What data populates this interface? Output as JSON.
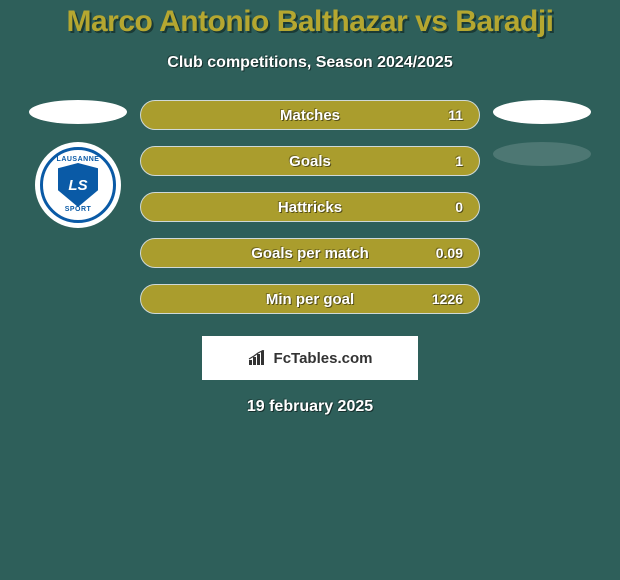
{
  "background_color": "#2e5f5a",
  "title": {
    "text": "Marco Antonio Balthazar vs Baradji",
    "color": "#b5a730",
    "shadow_color": "#1a3a36",
    "fontsize": 30
  },
  "subtitle": {
    "text": "Club competitions, Season 2024/2025",
    "color": "#ffffff",
    "fontsize": 16
  },
  "left_side": {
    "ellipse_color": "#ffffff",
    "club": {
      "bg": "#ffffff",
      "ring_color": "#0a5aa6",
      "top_text": "LAUSANNE",
      "bottom_text": "SPORT",
      "text_color": "#0a5aa6",
      "shield_bg": "#0a5aa6",
      "shield_text": "LS",
      "shield_text_color": "#ffffff"
    }
  },
  "right_side": {
    "ellipse1_color": "#ffffff",
    "ellipse2_color": "#4d7773"
  },
  "bars": {
    "fill_color": "#aa9d2d",
    "border_color": "#cfd9d7",
    "label_color": "#ffffff",
    "value_color": "#ffffff",
    "items": [
      {
        "label": "Matches",
        "value": "11"
      },
      {
        "label": "Goals",
        "value": "1"
      },
      {
        "label": "Hattricks",
        "value": "0"
      },
      {
        "label": "Goals per match",
        "value": "0.09"
      },
      {
        "label": "Min per goal",
        "value": "1226"
      }
    ]
  },
  "attribution": {
    "bg": "#ffffff",
    "text": "FcTables.com",
    "text_color": "#333333",
    "icon_color": "#333333"
  },
  "date": {
    "text": "19 february 2025",
    "color": "#ffffff"
  }
}
